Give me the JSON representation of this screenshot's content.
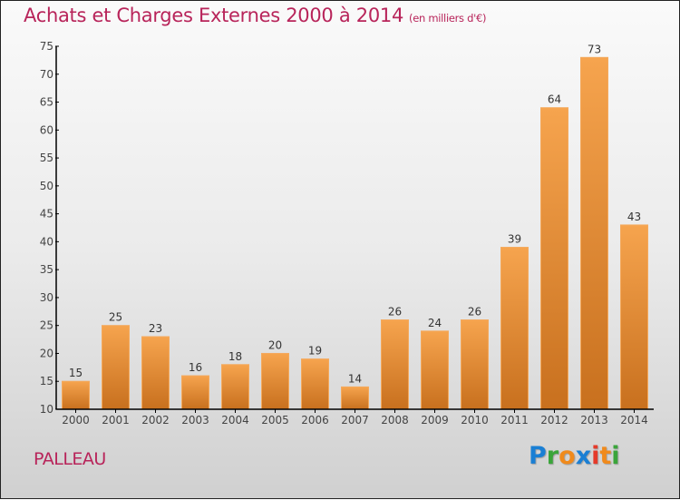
{
  "title": "Achats et Charges Externes 2000 à 2014",
  "unit": "(en milliers d'€)",
  "commune": "PALLEAU",
  "logo": {
    "letters": [
      {
        "ch": "P",
        "color": "#1a7fd4"
      },
      {
        "ch": "r",
        "color": "#3aa53a"
      },
      {
        "ch": "o",
        "color": "#f08a1c"
      },
      {
        "ch": "x",
        "color": "#1a7fd4"
      },
      {
        "ch": "i",
        "color": "#e53a2a"
      },
      {
        "ch": "t",
        "color": "#f08a1c"
      },
      {
        "ch": "i",
        "color": "#3aa53a"
      }
    ]
  },
  "colors": {
    "title": "#b8245a",
    "bar_top": "#f6a44e",
    "bar_bottom": "#c8701e",
    "axis": "#000000"
  },
  "chart_data": {
    "type": "bar",
    "title": "Achats et Charges Externes 2000 à 2014",
    "subtitle": "(en milliers d'€)",
    "xlabel": "",
    "ylabel": "",
    "categories": [
      "2000",
      "2001",
      "2002",
      "2003",
      "2004",
      "2005",
      "2006",
      "2007",
      "2008",
      "2009",
      "2010",
      "2011",
      "2012",
      "2013",
      "2014"
    ],
    "values": [
      15,
      25,
      23,
      16,
      18,
      20,
      19,
      14,
      26,
      24,
      26,
      39,
      64,
      73,
      43
    ],
    "ylim": [
      10,
      75
    ],
    "yticks": [
      10,
      15,
      20,
      25,
      30,
      35,
      40,
      45,
      50,
      55,
      60,
      65,
      70,
      75
    ],
    "grid": false,
    "legend": "none"
  }
}
